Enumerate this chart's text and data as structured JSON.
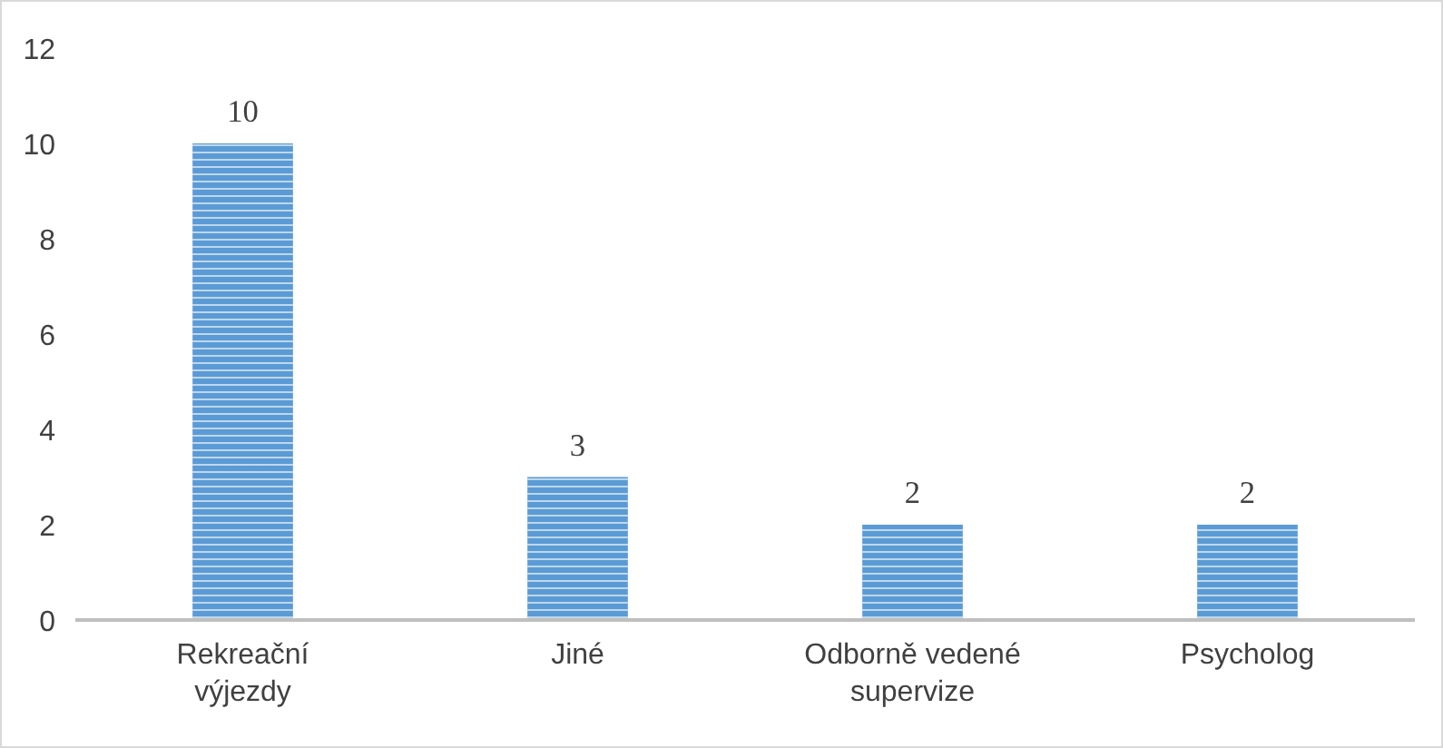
{
  "chart_data": {
    "type": "bar",
    "categories": [
      "Rekreační výjezdy",
      "Jiné",
      "Odborně vedené supervize",
      "Psycholog"
    ],
    "values": [
      10,
      3,
      2,
      2
    ],
    "color": "#5b9bd5",
    "ylim": [
      0,
      12
    ],
    "yticks": [
      0,
      2,
      4,
      6,
      8,
      10,
      12
    ],
    "grid": false,
    "data_labels": true
  }
}
